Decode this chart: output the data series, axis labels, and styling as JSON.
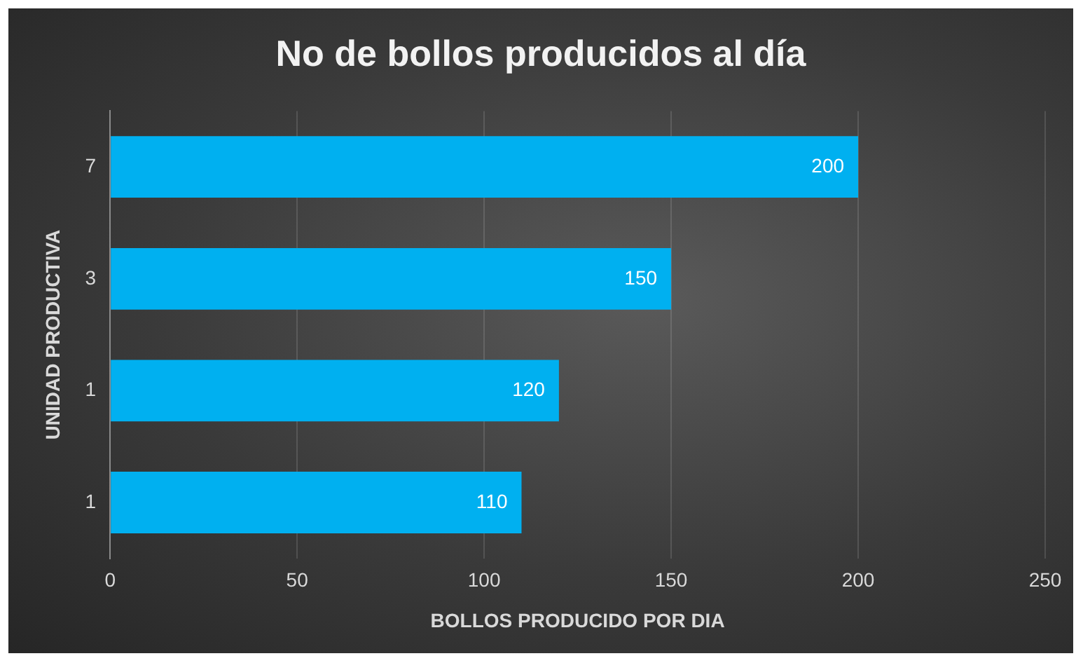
{
  "chart_data": {
    "type": "bar",
    "orientation": "horizontal",
    "title": "No de bollos producidos al día",
    "xlabel": "BOLLOS PRODUCIDO POR DIA",
    "ylabel": "UNIDAD PRODUCTIVA",
    "categories": [
      "7",
      "3",
      "1",
      "1"
    ],
    "values": [
      200,
      150,
      120,
      110
    ],
    "color": "#00b0f0",
    "xlim": [
      0,
      250
    ],
    "xticks": [
      0,
      50,
      100,
      150,
      200,
      250
    ],
    "grid": "x",
    "data_labels": true,
    "legend": false
  }
}
